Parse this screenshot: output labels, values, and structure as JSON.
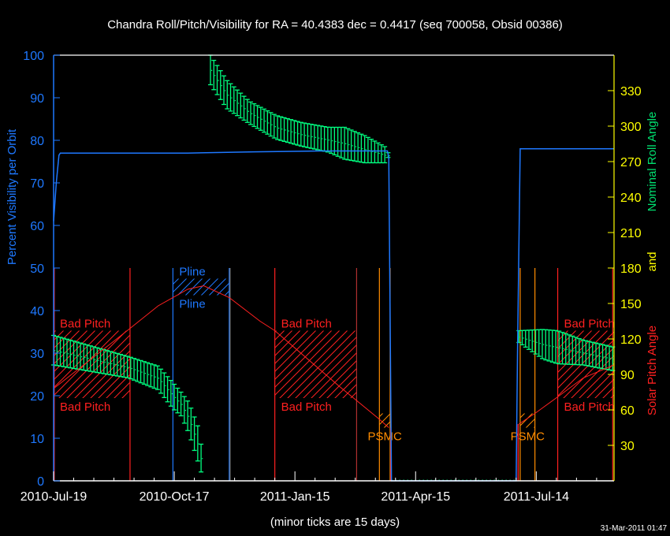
{
  "chart_data": {
    "type": "line",
    "title": "Chandra Roll/Pitch/Visibility for RA = 40.4383 dec = 0.4417 (seq 700058, Obsid 00386)",
    "x_axis": {
      "unit": "days since 2010-Jul-19",
      "range": [
        0,
        418
      ],
      "major_labels": [
        "2010-Jul-19",
        "2010-Oct-17",
        "2011-Jan-15",
        "2011-Apr-15",
        "2011-Jul-14"
      ],
      "major_days": [
        0,
        90,
        180,
        270,
        360
      ],
      "minor_tick_days": 15,
      "note": "(minor ticks are 15 days)"
    },
    "y_left": {
      "label": "Percent Visibility per Orbit",
      "range": [
        0,
        100
      ],
      "ticks": [
        0,
        10,
        20,
        30,
        40,
        50,
        60,
        70,
        80,
        90,
        100
      ]
    },
    "y_right": {
      "label_roll": "Nominal Roll Angle",
      "label_and": "and",
      "label_pitch": "Solar Pitch Angle",
      "range": [
        0,
        360
      ],
      "ticks": [
        30,
        60,
        90,
        120,
        150,
        180,
        210,
        240,
        270,
        300,
        330
      ]
    },
    "series": [
      {
        "name": "visibility",
        "axis": "left",
        "color": "#1e78ff",
        "points": [
          [
            0,
            61
          ],
          [
            2,
            70
          ],
          [
            4,
            76.5
          ],
          [
            5,
            77
          ],
          [
            100,
            77
          ],
          [
            150,
            77.3
          ],
          [
            200,
            77.5
          ],
          [
            249,
            77.5
          ],
          [
            250,
            76
          ],
          [
            252,
            0
          ],
          [
            345,
            0
          ],
          [
            346,
            30
          ],
          [
            348,
            78
          ],
          [
            418,
            78
          ]
        ]
      },
      {
        "name": "roll_angle_range",
        "axis": "right",
        "color": "#00ff80",
        "bar_step_days": 2.5,
        "segments": [
          [
            [
              0,
              98,
              123
            ],
            [
              56,
              87,
              105
            ],
            [
              78,
              77,
              97
            ],
            [
              89,
              61,
              83
            ],
            [
              95,
              55,
              75
            ],
            [
              101,
              40,
              66
            ],
            [
              108,
              15,
              45
            ],
            [
              112,
              0,
              17
            ]
          ],
          [
            [
              117,
              335,
              360
            ],
            [
              129,
              315,
              339
            ],
            [
              146,
              302,
              321
            ],
            [
              166,
              289,
              309
            ],
            [
              185,
              283,
              303
            ],
            [
              205,
              278,
              299
            ],
            [
              217,
              272,
              299
            ],
            [
              232,
              269,
              292
            ],
            [
              248,
              269,
              282
            ],
            [
              250,
              275,
              276
            ]
          ],
          [
            [
              347,
              117,
              127
            ],
            [
              365,
              103,
              128
            ],
            [
              376,
              99,
              127
            ],
            [
              395,
              98,
              119
            ],
            [
              418,
              93,
              113
            ]
          ]
        ]
      },
      {
        "name": "solar_pitch_angle",
        "axis": "right",
        "color": "#ff2020",
        "segments": [
          [
            [
              0,
              78
            ],
            [
              56,
              128
            ],
            [
              78,
              148
            ],
            [
              100,
              162
            ],
            [
              112,
              165
            ],
            [
              131,
              155
            ],
            [
              154,
              135
            ],
            [
              165,
              127
            ],
            [
              213,
              80
            ],
            [
              242,
              53
            ],
            [
              250,
              45
            ]
          ],
          [
            [
              347,
              48
            ],
            [
              359,
              57
            ],
            [
              376,
              71
            ],
            [
              395,
              87
            ],
            [
              418,
              98
            ]
          ]
        ]
      }
    ],
    "constraints": [
      {
        "label": "Bad Pitch",
        "start": 0,
        "end": 57,
        "lo": 70,
        "hi": 127,
        "color": "#ff2020"
      },
      {
        "label": "Bad Pitch",
        "start": 165,
        "end": 226,
        "lo": 70,
        "hi": 127,
        "color": "#ff2020"
      },
      {
        "label": "Bad Pitch",
        "start": 376,
        "end": 418,
        "lo": 70,
        "hi": 127,
        "color": "#ff2020"
      },
      {
        "label": "Pline",
        "start": 89,
        "end": 131,
        "lo": 157,
        "hi": 171,
        "color": "#1e78ff"
      },
      {
        "label": "PSMC",
        "start": 243,
        "end": 251,
        "lo": 45,
        "hi": 57,
        "color": "#ff8c00"
      },
      {
        "label": "PSMC",
        "start": 348,
        "end": 359,
        "lo": 45,
        "hi": 57,
        "color": "#ff8c00"
      }
    ],
    "vertical_lines": [
      {
        "day": 0.5,
        "color": "#ff2020"
      },
      {
        "day": 57,
        "color": "#ff2020"
      },
      {
        "day": 89,
        "color": "#1e78ff"
      },
      {
        "day": 131,
        "color": "#1e78ff"
      },
      {
        "day": 131.6,
        "color": "#808080"
      },
      {
        "day": 165,
        "color": "#ff2020"
      },
      {
        "day": 226,
        "color": "#b03030"
      },
      {
        "day": 243,
        "color": "#ff8c00"
      },
      {
        "day": 251,
        "color": "#ff8c00"
      },
      {
        "day": 348,
        "color": "#ff8c00"
      },
      {
        "day": 359,
        "color": "#ff8c00"
      },
      {
        "day": 376,
        "color": "#ff2020"
      },
      {
        "day": 417,
        "color": "#ff2020"
      }
    ],
    "vertical_line_top_pct": 50
  },
  "timestamp": "31-Mar-2011 01:47"
}
